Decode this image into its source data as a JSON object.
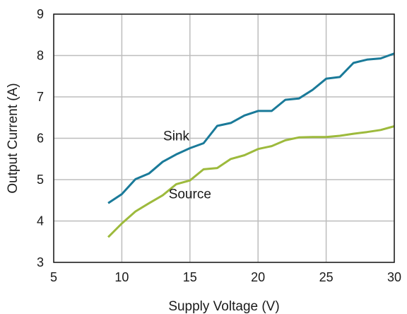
{
  "chart_data": {
    "type": "line",
    "xlabel": "Supply Voltage (V)",
    "ylabel": "Output Current (A)",
    "xlim": [
      5,
      30
    ],
    "ylim": [
      3,
      9
    ],
    "xticks": [
      5,
      10,
      15,
      20,
      25,
      30
    ],
    "yticks": [
      3,
      4,
      5,
      6,
      7,
      8,
      9
    ],
    "grid": true,
    "legend": "none",
    "series": [
      {
        "name": "Sink",
        "color": "#1a7a99",
        "x": [
          9,
          10,
          11,
          12,
          13,
          14,
          15,
          16,
          17,
          18,
          19,
          20,
          21,
          22,
          23,
          24,
          25,
          26,
          27,
          28,
          29,
          30
        ],
        "y": [
          4.43,
          4.65,
          5.01,
          5.15,
          5.43,
          5.61,
          5.76,
          5.88,
          6.3,
          6.37,
          6.55,
          6.66,
          6.66,
          6.93,
          6.96,
          7.17,
          7.44,
          7.48,
          7.82,
          7.9,
          7.93,
          8.05
        ]
      },
      {
        "name": "Source",
        "color": "#9dba3c",
        "x": [
          9,
          10,
          11,
          12,
          13,
          14,
          15,
          16,
          17,
          18,
          19,
          20,
          21,
          22,
          23,
          24,
          25,
          26,
          27,
          28,
          29,
          30
        ],
        "y": [
          3.61,
          3.94,
          4.23,
          4.43,
          4.62,
          4.89,
          4.98,
          5.25,
          5.28,
          5.5,
          5.59,
          5.74,
          5.81,
          5.95,
          6.02,
          6.03,
          6.03,
          6.06,
          6.11,
          6.15,
          6.2,
          6.29
        ]
      }
    ],
    "annotations": [
      {
        "text": "Sink",
        "x": 14.0,
        "y": 6.05
      },
      {
        "text": "Source",
        "x": 15.0,
        "y": 4.65
      }
    ]
  }
}
